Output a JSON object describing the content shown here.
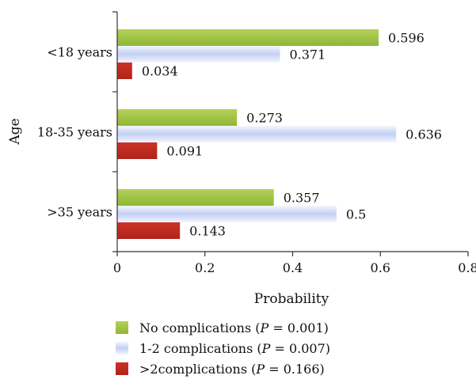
{
  "chart_data": {
    "type": "bar",
    "orientation": "horizontal",
    "categories": [
      "<18 years",
      "18-35 years",
      ">35 years"
    ],
    "series": [
      {
        "name": "No complications",
        "p_label": "P",
        "p_value": "0.001",
        "color": "#9dc040",
        "values": [
          0.596,
          0.273,
          0.357
        ],
        "labels": [
          "0.596",
          "0.273",
          "0.357"
        ]
      },
      {
        "name": "1-2 complications",
        "p_label": "P",
        "p_value": "0.007",
        "color": "#c8d3f5",
        "values": [
          0.371,
          0.636,
          0.5
        ],
        "labels": [
          "0.371",
          "0.636",
          "0.5"
        ]
      },
      {
        "name": ">2complications",
        "p_label": "P",
        "p_value": "0.166",
        "color": "#c0281e",
        "values": [
          0.034,
          0.091,
          0.143
        ],
        "labels": [
          "0.034",
          "0.091",
          "0.143"
        ]
      }
    ],
    "xlabel": "Probability",
    "ylabel": "Age",
    "xlim": [
      0,
      0.8
    ],
    "xticks": [
      "0",
      "0.2",
      "0.4",
      "0.6",
      "0.8"
    ],
    "grid": false,
    "legend_position": "bottom"
  }
}
